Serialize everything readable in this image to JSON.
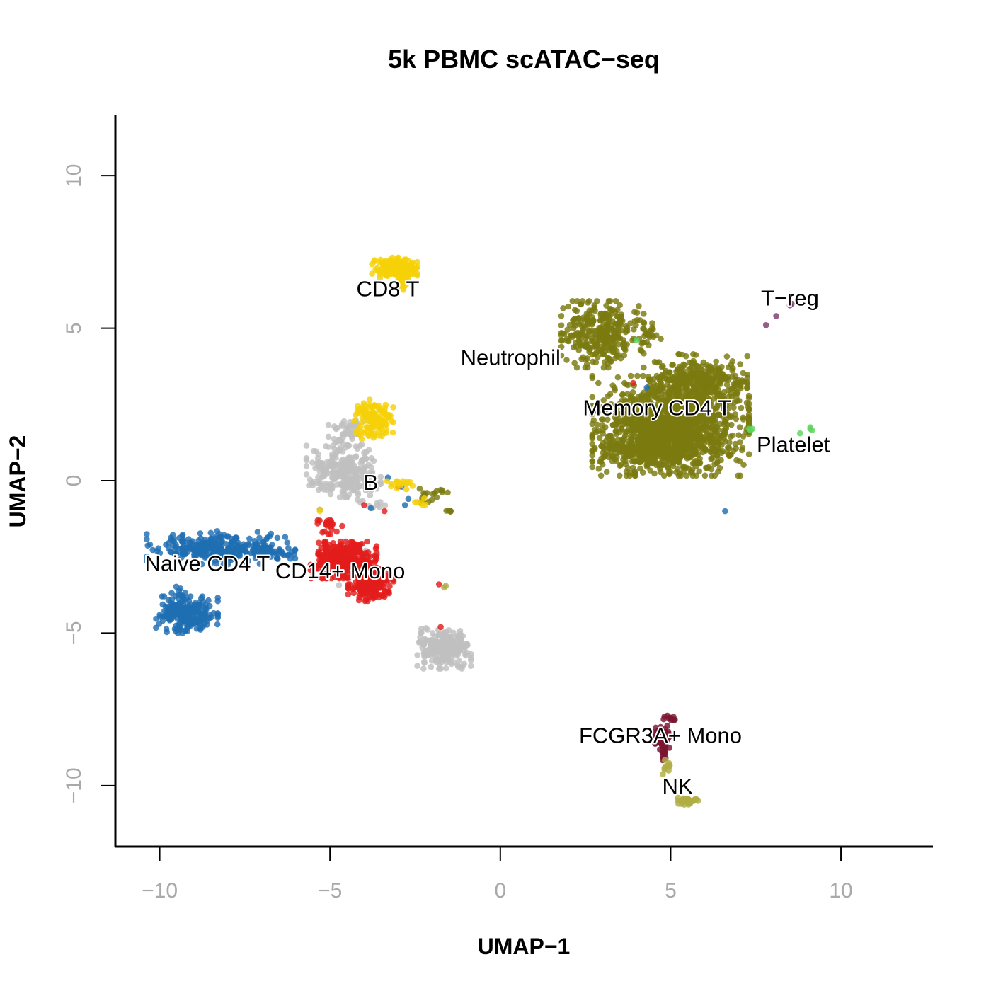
{
  "chart_data": {
    "type": "scatter",
    "title": "5k PBMC scATAC−seq",
    "xlabel": "UMAP−1",
    "ylabel": "UMAP−2",
    "xlim": [
      -11.3,
      12.7
    ],
    "ylim": [
      -12.0,
      12.0
    ],
    "xticks": [
      -10,
      -5,
      0,
      5,
      10
    ],
    "xtick_labels": [
      "−10",
      "−5",
      "0",
      "5",
      "10"
    ],
    "yticks": [
      -10,
      -5,
      0,
      5,
      10
    ],
    "ytick_labels": [
      "−10",
      "−5",
      "0",
      "5",
      "10"
    ],
    "grid": false,
    "legend": "none",
    "clusters": [
      {
        "name": "CD8 T",
        "color": "#f5d107",
        "label_pos": [
          -3.3,
          6.3
        ],
        "blobs": [
          {
            "cx": -3.1,
            "cy": 6.95,
            "rx": 0.55,
            "ry": 0.3,
            "n": 150
          },
          {
            "cx": -2.9,
            "cy": 6.5,
            "rx": 0.15,
            "ry": 0.2,
            "n": 15
          }
        ]
      },
      {
        "name": "T−reg",
        "color": "#7c3a6c",
        "label_pos": [
          8.5,
          6.0
        ],
        "points": [
          [
            7.8,
            5.1
          ],
          [
            8.1,
            5.4
          ],
          [
            8.5,
            5.75
          ],
          [
            8.55,
            5.8
          ]
        ]
      },
      {
        "name": "Neutrophil",
        "color": "#7a7a10",
        "label_pos": [
          0.3,
          4.05
        ],
        "blobs": [
          {
            "cx": 3.0,
            "cy": 4.8,
            "rx": 1.0,
            "ry": 0.9,
            "n": 320
          },
          {
            "cx": 4.4,
            "cy": 4.8,
            "rx": 0.4,
            "ry": 0.3,
            "n": 20
          }
        ]
      },
      {
        "name": "Memory CD4 T",
        "color": "#7a7a10",
        "label_pos": [
          4.6,
          2.4
        ],
        "blobs": [
          {
            "cx": 5.0,
            "cy": 1.8,
            "rx": 1.9,
            "ry": 1.35,
            "n": 1300
          },
          {
            "cx": 5.8,
            "cy": 3.3,
            "rx": 1.2,
            "ry": 0.7,
            "n": 300
          },
          {
            "cx": 4.3,
            "cy": 1.0,
            "rx": 1.1,
            "ry": 0.4,
            "n": 200
          },
          {
            "cx": -2.0,
            "cy": -0.5,
            "rx": 0.5,
            "ry": 0.35,
            "n": 18
          },
          {
            "cx": -1.5,
            "cy": -1.0,
            "rx": 0.12,
            "ry": 0.05,
            "n": 5
          }
        ]
      },
      {
        "name": "Platelet",
        "color": "#5dd45d",
        "label_pos": [
          8.6,
          1.2
        ],
        "points": [
          [
            7.3,
            1.7
          ],
          [
            7.35,
            1.65
          ],
          [
            7.4,
            1.7
          ],
          [
            8.8,
            1.55
          ],
          [
            9.1,
            1.75
          ],
          [
            9.1,
            1.7
          ],
          [
            9.15,
            1.65
          ],
          [
            4.0,
            4.6
          ]
        ]
      },
      {
        "name": "B",
        "color": "#c0c0c0",
        "label_pos": [
          -3.8,
          -0.05
        ],
        "blobs": [
          {
            "cx": -4.6,
            "cy": 0.3,
            "rx": 0.9,
            "ry": 0.7,
            "n": 260
          },
          {
            "cx": -4.5,
            "cy": 1.6,
            "rx": 0.45,
            "ry": 0.5,
            "n": 50
          },
          {
            "cx": -1.65,
            "cy": -5.5,
            "rx": 0.65,
            "ry": 0.55,
            "n": 260
          },
          {
            "cx": -4.2,
            "cy": -2.7,
            "rx": 0.8,
            "ry": 0.6,
            "n": 30
          },
          {
            "cx": -3.8,
            "cy": -0.8,
            "rx": 0.4,
            "ry": 0.2,
            "n": 10
          }
        ]
      },
      {
        "name": "Naive CD4 T",
        "color": "#1f6eb2",
        "label_pos": [
          -8.6,
          -2.7
        ],
        "blobs": [
          {
            "cx": -8.2,
            "cy": -2.2,
            "rx": 1.8,
            "ry": 0.45,
            "n": 300
          },
          {
            "cx": -9.2,
            "cy": -4.4,
            "rx": 0.75,
            "ry": 0.5,
            "n": 220
          },
          {
            "cx": -9.4,
            "cy": -3.9,
            "rx": 0.25,
            "ry": 0.35,
            "n": 20
          },
          {
            "cx": -6.7,
            "cy": -2.3,
            "rx": 0.4,
            "ry": 0.2,
            "n": 15
          }
        ],
        "points": [
          [
            -3.3,
            0.1
          ],
          [
            -2.9,
            -0.2
          ],
          [
            -2.7,
            -0.6
          ],
          [
            -2.8,
            -0.8
          ],
          [
            -3.8,
            -0.9
          ],
          [
            6.6,
            -1.0
          ],
          [
            4.3,
            3.05
          ]
        ]
      },
      {
        "name": "CD14+ Mono",
        "color": "#e31c1c",
        "label_pos": [
          -4.7,
          -2.95
        ],
        "blobs": [
          {
            "cx": -4.6,
            "cy": -2.6,
            "rx": 0.8,
            "ry": 0.5,
            "n": 350
          },
          {
            "cx": -3.8,
            "cy": -3.4,
            "rx": 0.55,
            "ry": 0.45,
            "n": 180
          },
          {
            "cx": -5.0,
            "cy": -1.5,
            "rx": 0.3,
            "ry": 0.3,
            "n": 20
          }
        ],
        "points": [
          [
            -1.8,
            -3.4
          ],
          [
            -1.75,
            -4.8
          ],
          [
            -4.0,
            -0.8
          ],
          [
            -3.4,
            -1.0
          ],
          [
            3.9,
            3.2
          ],
          [
            -3.0,
            -0.2
          ]
        ]
      },
      {
        "name": "FCGR3A+ Mono",
        "color": "#7a1530",
        "label_pos": [
          4.7,
          -8.35
        ],
        "blobs": [
          {
            "cx": 4.7,
            "cy": -8.4,
            "rx": 0.22,
            "ry": 0.3,
            "n": 80
          },
          {
            "cx": 5.0,
            "cy": -7.8,
            "rx": 0.2,
            "ry": 0.08,
            "n": 12
          },
          {
            "cx": 4.8,
            "cy": -8.9,
            "rx": 0.1,
            "ry": 0.25,
            "n": 15
          }
        ]
      },
      {
        "name": "NK",
        "color": "#b0ad43",
        "label_pos": [
          5.2,
          -10.0
        ],
        "blobs": [
          {
            "cx": 5.5,
            "cy": -10.5,
            "rx": 0.25,
            "ry": 0.1,
            "n": 45
          },
          {
            "cx": 4.9,
            "cy": -9.4,
            "rx": 0.12,
            "ry": 0.2,
            "n": 10
          }
        ],
        "points": [
          [
            -1.65,
            -3.5
          ],
          [
            -1.6,
            -3.45
          ],
          [
            -5.3,
            -0.95
          ]
        ]
      },
      {
        "name": "",
        "color": "#f5d107",
        "blobs": [
          {
            "cx": -3.75,
            "cy": 2.0,
            "rx": 0.5,
            "ry": 0.55,
            "n": 130
          },
          {
            "cx": -2.9,
            "cy": -0.1,
            "rx": 0.35,
            "ry": 0.15,
            "n": 18
          },
          {
            "cx": -2.3,
            "cy": -0.7,
            "rx": 0.2,
            "ry": 0.12,
            "n": 6
          }
        ],
        "points": [
          [
            -5.3,
            -1.0
          ]
        ]
      }
    ]
  }
}
